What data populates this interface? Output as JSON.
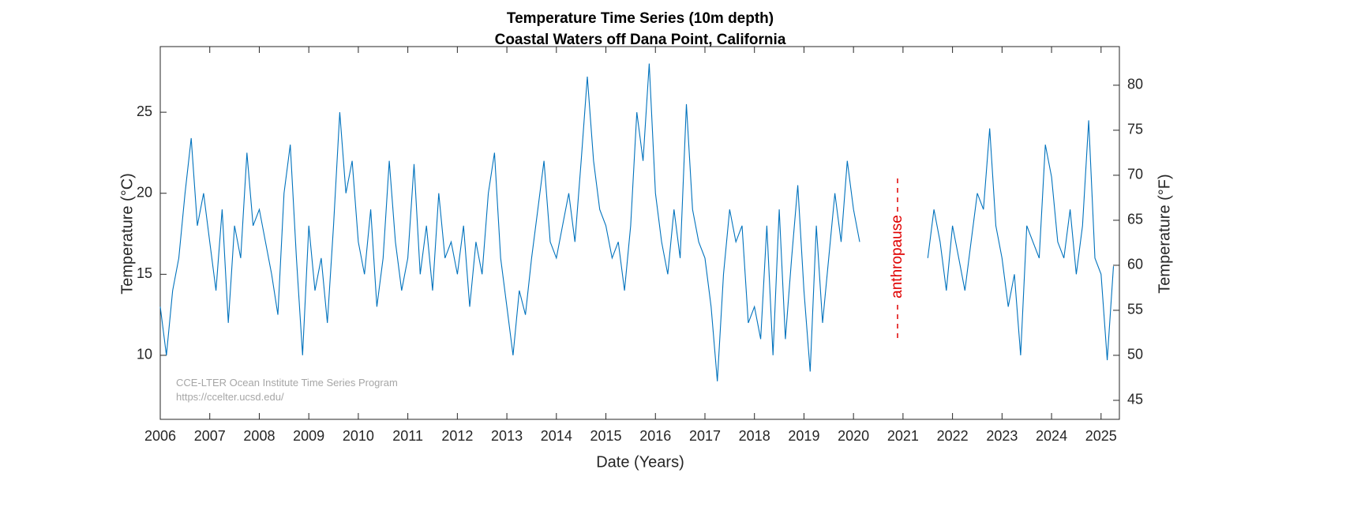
{
  "chart_data": {
    "type": "line",
    "title": "Temperature Time Series (10m depth)",
    "subtitle": "Coastal Waters off Dana Point, California",
    "xlabel": "Date (Years)",
    "ylabel": "Temperature (°C)",
    "y2label": "Temperature (°F)",
    "annotation": "anthropause",
    "credits": [
      "CCE-LTER Ocean Institute Time Series Program",
      "https://ccelter.ucsd.edu/"
    ],
    "color": "#0072bd",
    "x": [
      2006,
      2006.125,
      2006.25,
      2006.375,
      2006.5,
      2006.625,
      2006.75,
      2006.875,
      2007,
      2007.125,
      2007.25,
      2007.375,
      2007.5,
      2007.625,
      2007.75,
      2007.875,
      2008,
      2008.125,
      2008.25,
      2008.375,
      2008.5,
      2008.625,
      2008.75,
      2008.875,
      2009,
      2009.125,
      2009.25,
      2009.375,
      2009.5,
      2009.625,
      2009.75,
      2009.875,
      2010,
      2010.125,
      2010.25,
      2010.375,
      2010.5,
      2010.625,
      2010.75,
      2010.875,
      2011,
      2011.125,
      2011.25,
      2011.375,
      2011.5,
      2011.625,
      2011.75,
      2011.875,
      2012,
      2012.125,
      2012.25,
      2012.375,
      2012.5,
      2012.625,
      2012.75,
      2012.875,
      2013,
      2013.125,
      2013.25,
      2013.375,
      2013.5,
      2013.625,
      2013.75,
      2013.875,
      2014,
      2014.125,
      2014.25,
      2014.375,
      2014.5,
      2014.625,
      2014.75,
      2014.875,
      2015,
      2015.125,
      2015.25,
      2015.375,
      2015.5,
      2015.625,
      2015.75,
      2015.875,
      2016,
      2016.125,
      2016.25,
      2016.375,
      2016.5,
      2016.625,
      2016.75,
      2016.875,
      2017,
      2017.125,
      2017.25,
      2017.375,
      2017.5,
      2017.625,
      2017.75,
      2017.875,
      2018,
      2018.125,
      2018.25,
      2018.375,
      2018.5,
      2018.625,
      2018.75,
      2018.875,
      2019,
      2019.125,
      2019.25,
      2019.375,
      2019.5,
      2019.625,
      2019.75,
      2019.875,
      2020,
      2020.125,
      2020.75,
      2021.5,
      2021.625,
      2021.75,
      2021.875,
      2022,
      2022.125,
      2022.25,
      2022.375,
      2022.5,
      2022.625,
      2022.75,
      2022.875,
      2023,
      2023.125,
      2023.25,
      2023.375,
      2023.5,
      2023.625,
      2023.75,
      2023.875,
      2024,
      2024.125,
      2024.25,
      2024.375,
      2024.5,
      2024.625,
      2024.75,
      2024.875,
      2025,
      2025.125,
      2025.25
    ],
    "values": [
      13,
      10,
      14,
      16,
      20,
      23.4,
      18,
      20,
      17,
      14,
      19,
      12,
      18,
      16,
      22.5,
      18,
      19,
      17,
      15,
      12.5,
      20,
      23,
      16,
      10,
      18,
      14,
      16,
      12,
      18,
      25,
      20,
      22,
      17,
      15,
      19,
      13,
      16,
      22,
      17,
      14,
      16,
      21.8,
      15,
      18,
      14,
      20,
      16,
      17,
      15,
      18,
      13,
      17,
      15,
      20,
      22.5,
      16,
      13,
      10,
      14,
      12.5,
      16,
      19,
      22,
      17,
      16,
      18,
      20,
      17,
      22,
      27.2,
      22,
      19,
      18,
      16,
      17,
      14,
      18,
      25,
      22,
      28,
      20,
      17,
      15,
      19,
      16,
      25.5,
      19,
      17,
      16,
      13,
      8.4,
      15,
      19,
      17,
      18,
      12,
      13,
      11,
      18,
      10,
      19,
      11,
      16,
      20.5,
      14,
      9,
      18,
      12,
      16,
      20,
      17,
      22,
      19,
      17,
      null,
      16,
      19,
      17,
      14,
      18,
      16,
      14,
      17,
      20,
      19,
      24,
      18,
      16,
      13,
      15,
      10,
      18,
      17,
      16,
      23,
      21,
      17,
      16,
      19,
      15,
      18,
      24.5,
      16,
      15,
      9.7,
      15.5
    ],
    "xlim": [
      2006,
      2025.37
    ],
    "xticks": [
      2006,
      2007,
      2008,
      2009,
      2010,
      2011,
      2012,
      2013,
      2014,
      2015,
      2016,
      2017,
      2018,
      2019,
      2020,
      2021,
      2022,
      2023,
      2024,
      2025
    ],
    "ylim": [
      6.05,
      29.05
    ],
    "yticks": [
      10,
      15,
      20,
      25
    ],
    "y2lim": [
      42.89,
      84.29
    ],
    "y2ticks": [
      45,
      50,
      55,
      60,
      65,
      70,
      75,
      80
    ]
  }
}
